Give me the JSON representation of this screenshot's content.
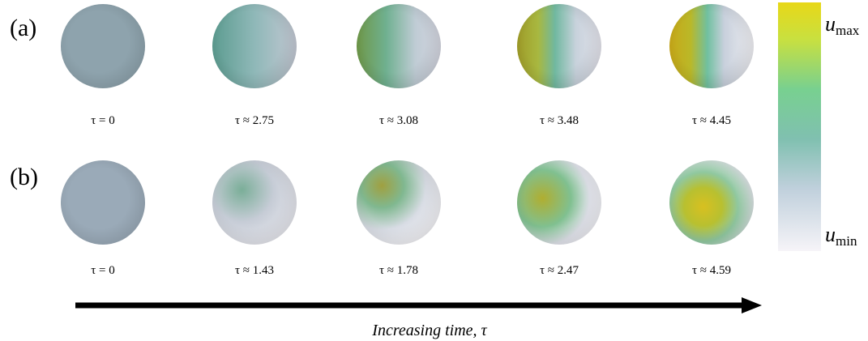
{
  "panels": [
    {
      "label": "(a)",
      "times": [
        "τ = 0",
        "τ ≈ 2.75",
        "τ ≈ 3.08",
        "τ ≈ 3.48",
        "τ ≈ 4.45"
      ]
    },
    {
      "label": "(b)",
      "times": [
        "τ = 0",
        "τ ≈ 1.43",
        "τ ≈ 1.78",
        "τ ≈ 2.47",
        "τ ≈ 4.59"
      ]
    }
  ],
  "colorbar": {
    "max": {
      "symbol": "u",
      "subscript": "max"
    },
    "min": {
      "symbol": "u",
      "subscript": "min"
    }
  },
  "arrow_caption": "Increasing time, τ"
}
